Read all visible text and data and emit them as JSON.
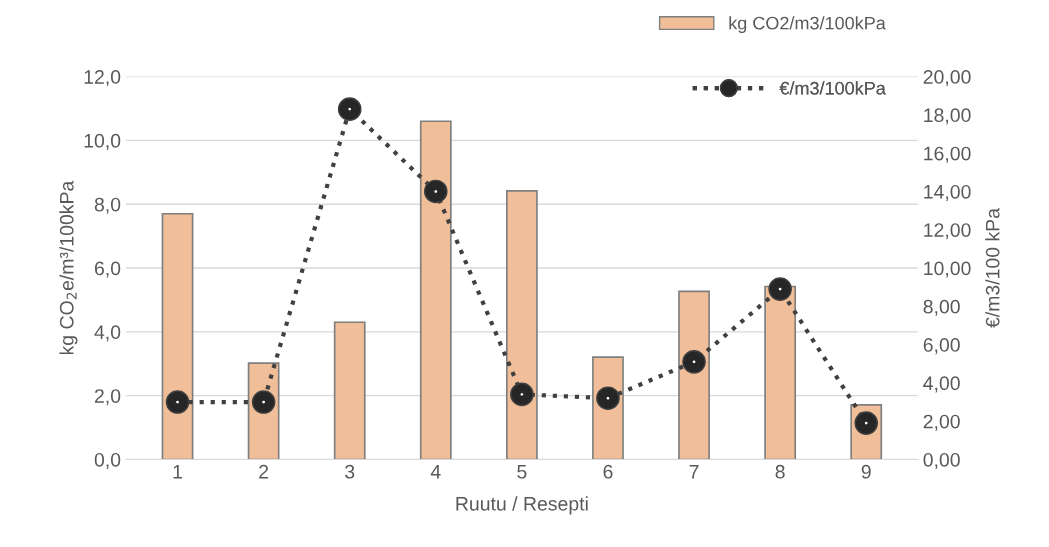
{
  "chart_data": {
    "type": "bar",
    "xlabel": "Ruutu / Resepti",
    "ylabel": "kg CO$_{2}$e/m³/100kPa",
    "y2label": "€/m3/100 kPa",
    "categories": [
      "1",
      "2",
      "3",
      "4",
      "5",
      "6",
      "7",
      "8",
      "9"
    ],
    "series": [
      {
        "name": "kg CO2/m3/100kPa",
        "color": "#f0bf99",
        "values": [
          7.7,
          3.02,
          4.3,
          10.6,
          8.42,
          3.21,
          5.27,
          5.42,
          1.71
        ]
      },
      {
        "name": "€/m3/100kPa",
        "type": "line",
        "axis": "y2",
        "color": "#404040",
        "marker": "circle",
        "line_style": "dotted",
        "values": [
          3.0,
          3.0,
          18.3,
          14.0,
          3.4,
          3.2,
          5.1,
          8.9,
          1.9
        ]
      }
    ],
    "ylim": [
      0,
      12
    ],
    "yticks": [
      {
        "value": 0,
        "label": "0,0"
      },
      {
        "value": 2,
        "label": "2,0"
      },
      {
        "value": 4,
        "label": "4,0"
      },
      {
        "value": 6,
        "label": "6,0"
      },
      {
        "value": 8,
        "label": "8,0"
      },
      {
        "value": 10,
        "label": "10,0"
      },
      {
        "value": 12,
        "label": "12,0"
      }
    ],
    "y2lim": [
      0,
      20
    ],
    "y2ticks": [
      {
        "value": 0,
        "label": "0,00"
      },
      {
        "value": 2,
        "label": "2,00"
      },
      {
        "value": 4,
        "label": "4,00"
      },
      {
        "value": 6,
        "label": "6,00"
      },
      {
        "value": 8,
        "label": "8,00"
      },
      {
        "value": 10,
        "label": "10,00"
      },
      {
        "value": 12,
        "label": "12,00"
      },
      {
        "value": 14,
        "label": "14,00"
      },
      {
        "value": 16,
        "label": "16,00"
      },
      {
        "value": 18,
        "label": "18,00"
      },
      {
        "value": 20,
        "label": "20,00"
      }
    ],
    "grid": "y",
    "legend": "top right"
  }
}
